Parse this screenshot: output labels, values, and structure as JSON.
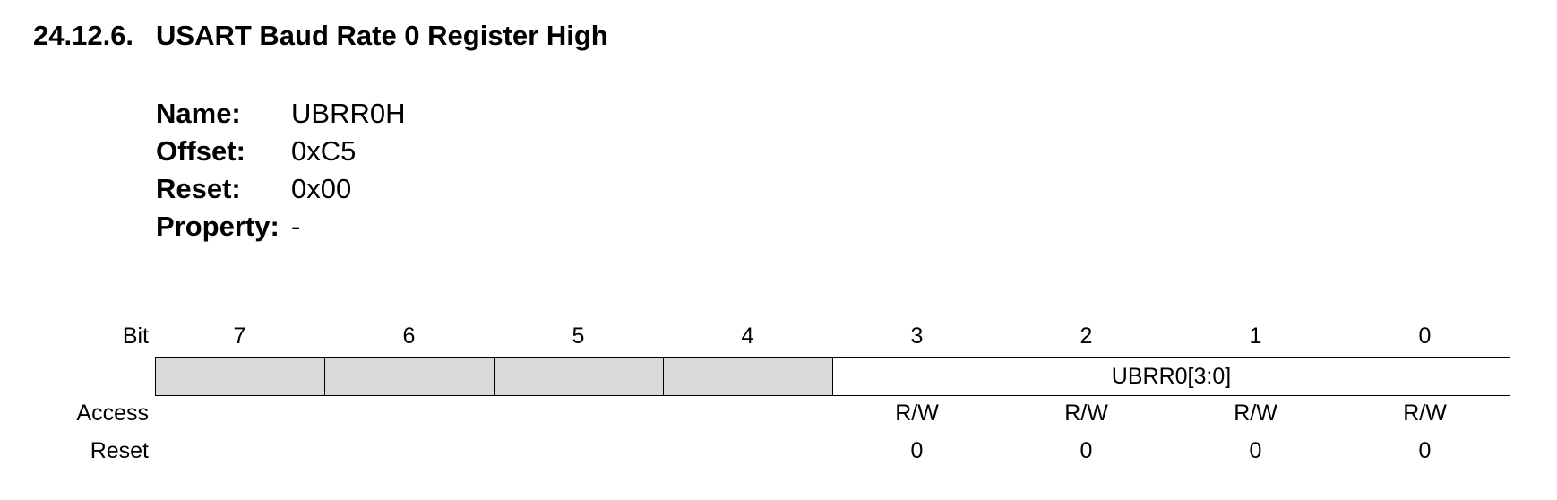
{
  "section": {
    "number": "24.12.6.",
    "title": "USART Baud Rate 0 Register High"
  },
  "properties": [
    {
      "key": "Name:",
      "value": "UBRR0H"
    },
    {
      "key": "Offset:",
      "value": "0xC5"
    },
    {
      "key": "Reset:",
      "value": "0x00"
    },
    {
      "key": "Property:",
      "value": "-"
    }
  ],
  "register": {
    "labels": {
      "bit": "Bit",
      "access": "Access",
      "reset": "Reset"
    },
    "bits": [
      "7",
      "6",
      "5",
      "4",
      "3",
      "2",
      "1",
      "0"
    ],
    "field": {
      "name": "UBRR0[3:0]",
      "bits": "3:0"
    },
    "reserved_bits": [
      "7",
      "6",
      "5",
      "4"
    ],
    "access": [
      "",
      "",
      "",
      "",
      "R/W",
      "R/W",
      "R/W",
      "R/W"
    ],
    "reset": [
      "",
      "",
      "",
      "",
      "0",
      "0",
      "0",
      "0"
    ],
    "colors": {
      "reserved_fill": "#d9d9d9",
      "border": "#000000"
    }
  }
}
